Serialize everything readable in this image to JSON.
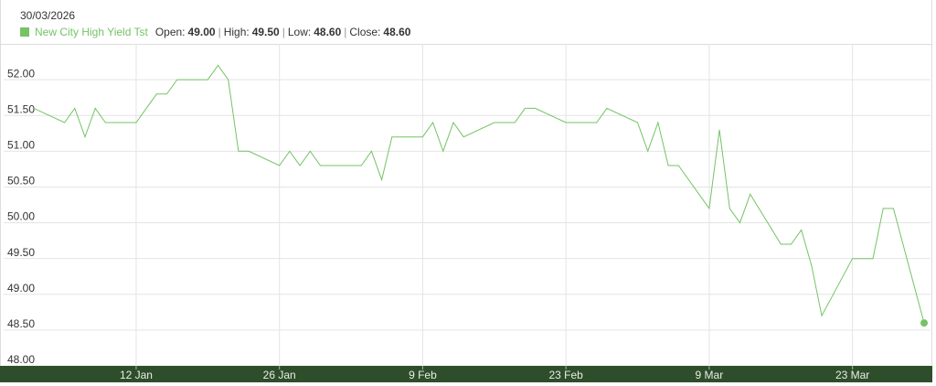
{
  "chart_data": {
    "type": "line",
    "tooltip": {
      "date": "30/03/2026",
      "fields": [
        {
          "name": "Open:",
          "value": "49.00"
        },
        {
          "name": "High:",
          "value": "49.50"
        },
        {
          "name": "Low:",
          "value": "48.60"
        },
        {
          "name": "Close:",
          "value": "48.60"
        }
      ]
    },
    "x": [
      "2026-01-02",
      "2026-01-05",
      "2026-01-06",
      "2026-01-07",
      "2026-01-08",
      "2026-01-09",
      "2026-01-12",
      "2026-01-13",
      "2026-01-14",
      "2026-01-15",
      "2026-01-16",
      "2026-01-19",
      "2026-01-20",
      "2026-01-21",
      "2026-01-22",
      "2026-01-23",
      "2026-01-26",
      "2026-01-27",
      "2026-01-28",
      "2026-01-29",
      "2026-01-30",
      "2026-02-02",
      "2026-02-03",
      "2026-02-04",
      "2026-02-05",
      "2026-02-06",
      "2026-02-09",
      "2026-02-10",
      "2026-02-11",
      "2026-02-12",
      "2026-02-13",
      "2026-02-16",
      "2026-02-17",
      "2026-02-18",
      "2026-02-19",
      "2026-02-20",
      "2026-02-23",
      "2026-02-24",
      "2026-02-25",
      "2026-02-26",
      "2026-02-27",
      "2026-03-02",
      "2026-03-03",
      "2026-03-04",
      "2026-03-05",
      "2026-03-06",
      "2026-03-09",
      "2026-03-10",
      "2026-03-11",
      "2026-03-12",
      "2026-03-13",
      "2026-03-16",
      "2026-03-17",
      "2026-03-18",
      "2026-03-19",
      "2026-03-20",
      "2026-03-23",
      "2026-03-24",
      "2026-03-25",
      "2026-03-26",
      "2026-03-27",
      "2026-03-30"
    ],
    "series": [
      {
        "name": "New City High Yield Tst",
        "color": "#74c365",
        "values": [
          51.6,
          51.4,
          51.6,
          51.2,
          51.6,
          51.4,
          51.4,
          51.6,
          51.8,
          51.8,
          52.0,
          52.0,
          52.2,
          52.0,
          51.0,
          51.0,
          50.8,
          51.0,
          50.8,
          51.0,
          50.8,
          50.8,
          50.8,
          51.0,
          50.6,
          51.2,
          51.2,
          51.4,
          51.0,
          51.4,
          51.2,
          51.4,
          51.4,
          51.4,
          51.6,
          51.6,
          51.4,
          51.4,
          51.4,
          51.4,
          51.6,
          51.4,
          51.0,
          51.4,
          50.8,
          50.8,
          50.2,
          51.3,
          50.2,
          50.0,
          50.4,
          49.7,
          49.7,
          49.9,
          49.4,
          48.7,
          49.5,
          49.5,
          49.5,
          50.2,
          50.2,
          48.6
        ]
      }
    ],
    "xlim": [
      "2026-01-02",
      "2026-03-30"
    ],
    "xticks": [
      {
        "value": "2026-01-12",
        "label": "12 Jan"
      },
      {
        "value": "2026-01-26",
        "label": "26 Jan"
      },
      {
        "value": "2026-02-09",
        "label": "9 Feb"
      },
      {
        "value": "2026-02-23",
        "label": "23 Feb"
      },
      {
        "value": "2026-03-09",
        "label": "9 Mar"
      },
      {
        "value": "2026-03-23",
        "label": "23 Mar"
      }
    ],
    "ylim": [
      48,
      52.5
    ],
    "yticks": [
      {
        "value": 48,
        "label": "48.00"
      },
      {
        "value": 48.5,
        "label": "48.50"
      },
      {
        "value": 49,
        "label": "49.00"
      },
      {
        "value": 49.5,
        "label": "49.50"
      },
      {
        "value": 50,
        "label": "50.00"
      },
      {
        "value": 50.5,
        "label": "50.50"
      },
      {
        "value": 51,
        "label": "51.00"
      },
      {
        "value": 51.5,
        "label": "51.50"
      },
      {
        "value": 52,
        "label": "52.00"
      }
    ],
    "grid": true,
    "axis_bar_color": "#2e4d2a"
  }
}
